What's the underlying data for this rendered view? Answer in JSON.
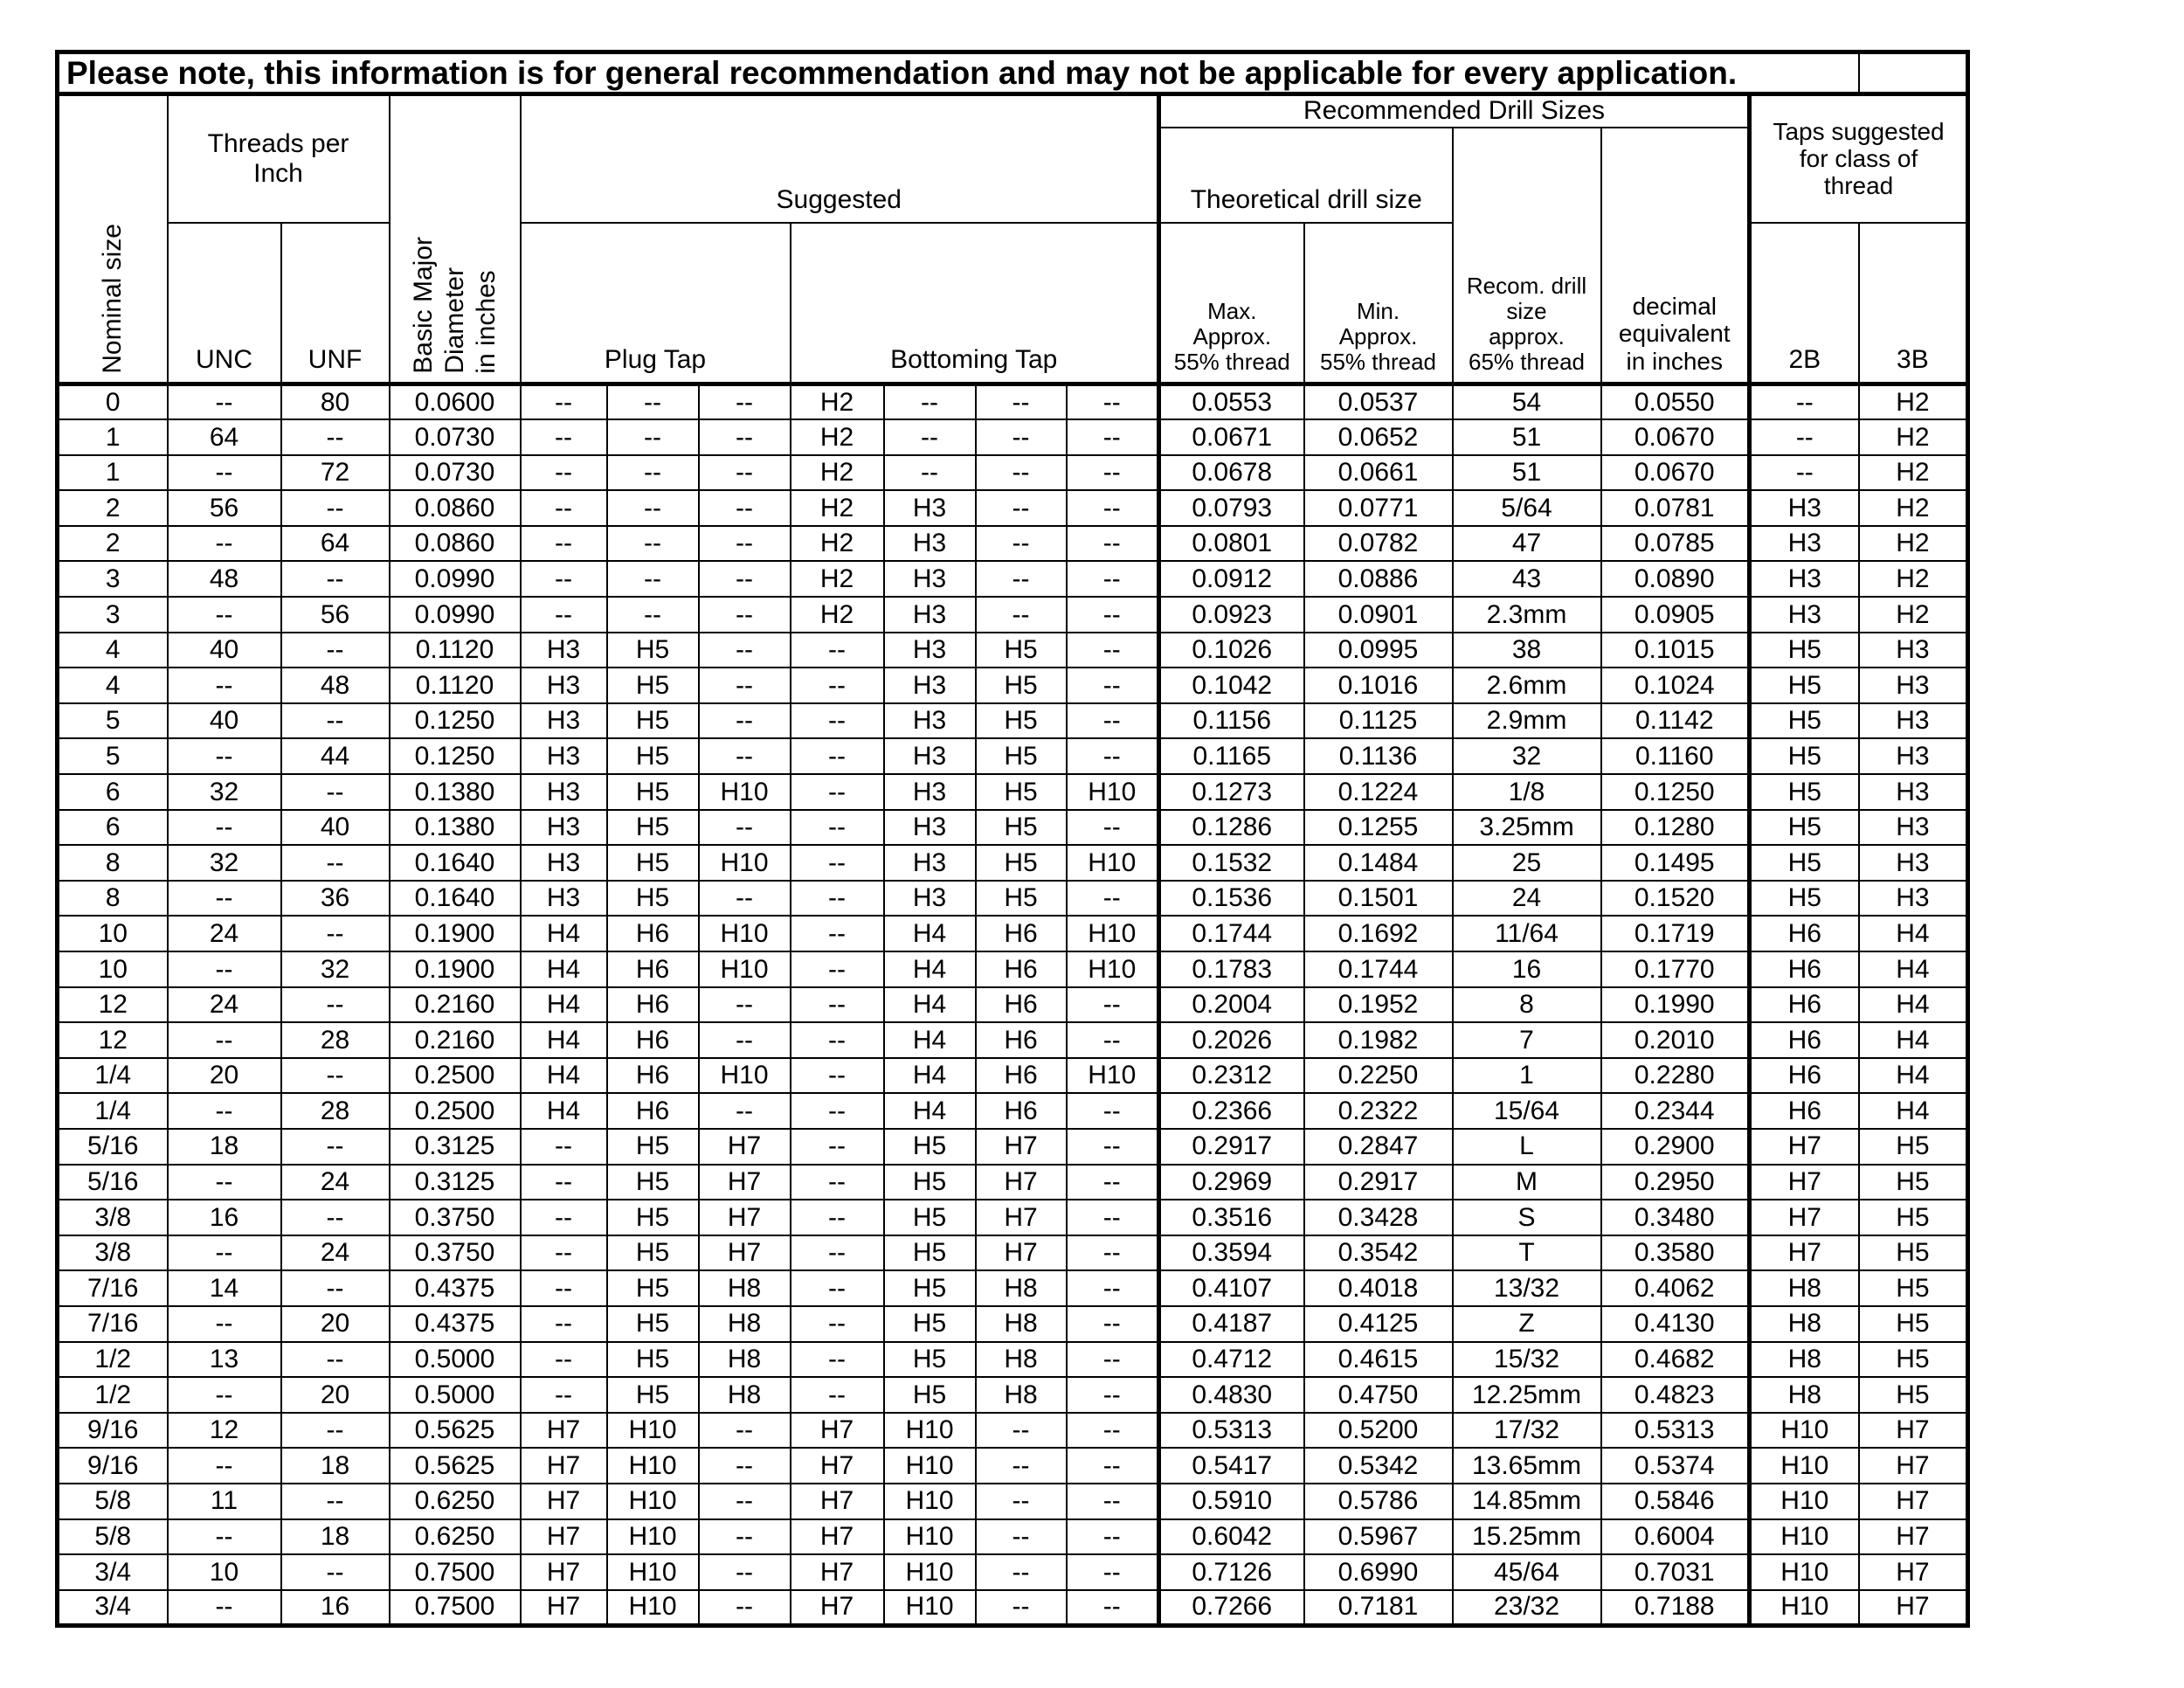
{
  "note": {
    "text": "Please note, this information is for general recommendation and may not be applicable for every application."
  },
  "header": {
    "nominal_size": "Nominal size",
    "threads_per_inch": "Threads per\nInch",
    "unc": "UNC",
    "unf": "UNF",
    "basic_major_diameter": "Basic Major\nDiameter\nin inches",
    "suggested": "Suggested",
    "plug_tap": "Plug Tap",
    "bottoming_tap": "Bottoming Tap",
    "recommended_drill_sizes": "Recommended Drill Sizes",
    "theoretical_drill_size": "Theoretical drill size",
    "max_approx": "Max.\nApprox.\n55% thread",
    "min_approx": "Min.\nApprox.\n55% thread",
    "recom_drill": "Recom. drill\nsize\napprox.\n65% thread",
    "decimal_equivalent": "decimal\nequivalent\nin inches",
    "taps_suggested": "Taps suggested\nfor class of\nthread",
    "class_2b": "2B",
    "class_3b": "3B"
  },
  "chart_data": {
    "type": "table",
    "columns": [
      "Nominal size",
      "Threads per Inch UNC",
      "Threads per Inch UNF",
      "Basic Major Diameter in inches",
      "Suggested Plug Tap 1",
      "Suggested Plug Tap 2",
      "Suggested Plug Tap 3",
      "Suggested Bottoming Tap 1",
      "Suggested Bottoming Tap 2",
      "Suggested Bottoming Tap 3",
      "Suggested Bottoming Tap 4",
      "Max. Approx. 55% thread",
      "Min. Approx. 55% thread",
      "Recom. drill size approx. 65% thread",
      "decimal equivalent in inches",
      "2B",
      "3B"
    ],
    "rows": [
      [
        "0",
        "--",
        "80",
        "0.0600",
        "--",
        "--",
        "--",
        "H2",
        "--",
        "--",
        "--",
        "0.0553",
        "0.0537",
        "54",
        "0.0550",
        "--",
        "H2"
      ],
      [
        "1",
        "64",
        "--",
        "0.0730",
        "--",
        "--",
        "--",
        "H2",
        "--",
        "--",
        "--",
        "0.0671",
        "0.0652",
        "51",
        "0.0670",
        "--",
        "H2"
      ],
      [
        "1",
        "--",
        "72",
        "0.0730",
        "--",
        "--",
        "--",
        "H2",
        "--",
        "--",
        "--",
        "0.0678",
        "0.0661",
        "51",
        "0.0670",
        "--",
        "H2"
      ],
      [
        "2",
        "56",
        "--",
        "0.0860",
        "--",
        "--",
        "--",
        "H2",
        "H3",
        "--",
        "--",
        "0.0793",
        "0.0771",
        "5/64",
        "0.0781",
        "H3",
        "H2"
      ],
      [
        "2",
        "--",
        "64",
        "0.0860",
        "--",
        "--",
        "--",
        "H2",
        "H3",
        "--",
        "--",
        "0.0801",
        "0.0782",
        "47",
        "0.0785",
        "H3",
        "H2"
      ],
      [
        "3",
        "48",
        "--",
        "0.0990",
        "--",
        "--",
        "--",
        "H2",
        "H3",
        "--",
        "--",
        "0.0912",
        "0.0886",
        "43",
        "0.0890",
        "H3",
        "H2"
      ],
      [
        "3",
        "--",
        "56",
        "0.0990",
        "--",
        "--",
        "--",
        "H2",
        "H3",
        "--",
        "--",
        "0.0923",
        "0.0901",
        "2.3mm",
        "0.0905",
        "H3",
        "H2"
      ],
      [
        "4",
        "40",
        "--",
        "0.1120",
        "H3",
        "H5",
        "--",
        "--",
        "H3",
        "H5",
        "--",
        "0.1026",
        "0.0995",
        "38",
        "0.1015",
        "H5",
        "H3"
      ],
      [
        "4",
        "--",
        "48",
        "0.1120",
        "H3",
        "H5",
        "--",
        "--",
        "H3",
        "H5",
        "--",
        "0.1042",
        "0.1016",
        "2.6mm",
        "0.1024",
        "H5",
        "H3"
      ],
      [
        "5",
        "40",
        "--",
        "0.1250",
        "H3",
        "H5",
        "--",
        "--",
        "H3",
        "H5",
        "--",
        "0.1156",
        "0.1125",
        "2.9mm",
        "0.1142",
        "H5",
        "H3"
      ],
      [
        "5",
        "--",
        "44",
        "0.1250",
        "H3",
        "H5",
        "--",
        "--",
        "H3",
        "H5",
        "--",
        "0.1165",
        "0.1136",
        "32",
        "0.1160",
        "H5",
        "H3"
      ],
      [
        "6",
        "32",
        "--",
        "0.1380",
        "H3",
        "H5",
        "H10",
        "--",
        "H3",
        "H5",
        "H10",
        "0.1273",
        "0.1224",
        "1/8",
        "0.1250",
        "H5",
        "H3"
      ],
      [
        "6",
        "--",
        "40",
        "0.1380",
        "H3",
        "H5",
        "--",
        "--",
        "H3",
        "H5",
        "--",
        "0.1286",
        "0.1255",
        "3.25mm",
        "0.1280",
        "H5",
        "H3"
      ],
      [
        "8",
        "32",
        "--",
        "0.1640",
        "H3",
        "H5",
        "H10",
        "--",
        "H3",
        "H5",
        "H10",
        "0.1532",
        "0.1484",
        "25",
        "0.1495",
        "H5",
        "H3"
      ],
      [
        "8",
        "--",
        "36",
        "0.1640",
        "H3",
        "H5",
        "--",
        "--",
        "H3",
        "H5",
        "--",
        "0.1536",
        "0.1501",
        "24",
        "0.1520",
        "H5",
        "H3"
      ],
      [
        "10",
        "24",
        "--",
        "0.1900",
        "H4",
        "H6",
        "H10",
        "--",
        "H4",
        "H6",
        "H10",
        "0.1744",
        "0.1692",
        "11/64",
        "0.1719",
        "H6",
        "H4"
      ],
      [
        "10",
        "--",
        "32",
        "0.1900",
        "H4",
        "H6",
        "H10",
        "--",
        "H4",
        "H6",
        "H10",
        "0.1783",
        "0.1744",
        "16",
        "0.1770",
        "H6",
        "H4"
      ],
      [
        "12",
        "24",
        "--",
        "0.2160",
        "H4",
        "H6",
        "--",
        "--",
        "H4",
        "H6",
        "--",
        "0.2004",
        "0.1952",
        "8",
        "0.1990",
        "H6",
        "H4"
      ],
      [
        "12",
        "--",
        "28",
        "0.2160",
        "H4",
        "H6",
        "--",
        "--",
        "H4",
        "H6",
        "--",
        "0.2026",
        "0.1982",
        "7",
        "0.2010",
        "H6",
        "H4"
      ],
      [
        "1/4",
        "20",
        "--",
        "0.2500",
        "H4",
        "H6",
        "H10",
        "--",
        "H4",
        "H6",
        "H10",
        "0.2312",
        "0.2250",
        "1",
        "0.2280",
        "H6",
        "H4"
      ],
      [
        "1/4",
        "--",
        "28",
        "0.2500",
        "H4",
        "H6",
        "--",
        "--",
        "H4",
        "H6",
        "--",
        "0.2366",
        "0.2322",
        "15/64",
        "0.2344",
        "H6",
        "H4"
      ],
      [
        "5/16",
        "18",
        "--",
        "0.3125",
        "--",
        "H5",
        "H7",
        "--",
        "H5",
        "H7",
        "--",
        "0.2917",
        "0.2847",
        "L",
        "0.2900",
        "H7",
        "H5"
      ],
      [
        "5/16",
        "--",
        "24",
        "0.3125",
        "--",
        "H5",
        "H7",
        "--",
        "H5",
        "H7",
        "--",
        "0.2969",
        "0.2917",
        "M",
        "0.2950",
        "H7",
        "H5"
      ],
      [
        "3/8",
        "16",
        "--",
        "0.3750",
        "--",
        "H5",
        "H7",
        "--",
        "H5",
        "H7",
        "--",
        "0.3516",
        "0.3428",
        "S",
        "0.3480",
        "H7",
        "H5"
      ],
      [
        "3/8",
        "--",
        "24",
        "0.3750",
        "--",
        "H5",
        "H7",
        "--",
        "H5",
        "H7",
        "--",
        "0.3594",
        "0.3542",
        "T",
        "0.3580",
        "H7",
        "H5"
      ],
      [
        "7/16",
        "14",
        "--",
        "0.4375",
        "--",
        "H5",
        "H8",
        "--",
        "H5",
        "H8",
        "--",
        "0.4107",
        "0.4018",
        "13/32",
        "0.4062",
        "H8",
        "H5"
      ],
      [
        "7/16",
        "--",
        "20",
        "0.4375",
        "--",
        "H5",
        "H8",
        "--",
        "H5",
        "H8",
        "--",
        "0.4187",
        "0.4125",
        "Z",
        "0.4130",
        "H8",
        "H5"
      ],
      [
        "1/2",
        "13",
        "--",
        "0.5000",
        "--",
        "H5",
        "H8",
        "--",
        "H5",
        "H8",
        "--",
        "0.4712",
        "0.4615",
        "15/32",
        "0.4682",
        "H8",
        "H5"
      ],
      [
        "1/2",
        "--",
        "20",
        "0.5000",
        "--",
        "H5",
        "H8",
        "--",
        "H5",
        "H8",
        "--",
        "0.4830",
        "0.4750",
        "12.25mm",
        "0.4823",
        "H8",
        "H5"
      ],
      [
        "9/16",
        "12",
        "--",
        "0.5625",
        "H7",
        "H10",
        "--",
        "H7",
        "H10",
        "--",
        "--",
        "0.5313",
        "0.5200",
        "17/32",
        "0.5313",
        "H10",
        "H7"
      ],
      [
        "9/16",
        "--",
        "18",
        "0.5625",
        "H7",
        "H10",
        "--",
        "H7",
        "H10",
        "--",
        "--",
        "0.5417",
        "0.5342",
        "13.65mm",
        "0.5374",
        "H10",
        "H7"
      ],
      [
        "5/8",
        "11",
        "--",
        "0.6250",
        "H7",
        "H10",
        "--",
        "H7",
        "H10",
        "--",
        "--",
        "0.5910",
        "0.5786",
        "14.85mm",
        "0.5846",
        "H10",
        "H7"
      ],
      [
        "5/8",
        "--",
        "18",
        "0.6250",
        "H7",
        "H10",
        "--",
        "H7",
        "H10",
        "--",
        "--",
        "0.6042",
        "0.5967",
        "15.25mm",
        "0.6004",
        "H10",
        "H7"
      ],
      [
        "3/4",
        "10",
        "--",
        "0.7500",
        "H7",
        "H10",
        "--",
        "H7",
        "H10",
        "--",
        "--",
        "0.7126",
        "0.6990",
        "45/64",
        "0.7031",
        "H10",
        "H7"
      ],
      [
        "3/4",
        "--",
        "16",
        "0.7500",
        "H7",
        "H10",
        "--",
        "H7",
        "H10",
        "--",
        "--",
        "0.7266",
        "0.7181",
        "23/32",
        "0.7188",
        "H10",
        "H7"
      ]
    ]
  }
}
